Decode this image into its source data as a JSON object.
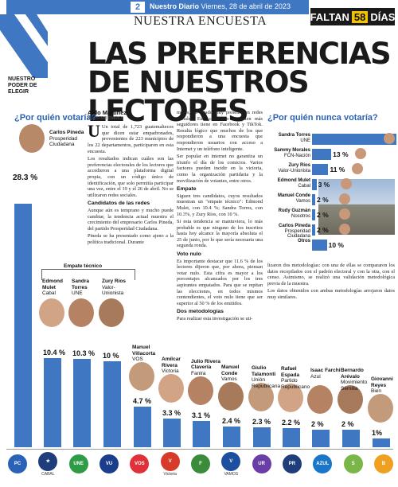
{
  "header": {
    "page_number": "2",
    "paper": "Nuestro Diario",
    "date": "Viernes, 28 de abril de 2023",
    "section": "NUESTRA ENCUESTA",
    "countdown_prefix": "FALTAN",
    "countdown_number": "58",
    "countdown_suffix": "DÍAS",
    "brand_lines": [
      "NUESTRO",
      "PODER DE",
      "ELEGIR"
    ]
  },
  "headline": [
    "LAS PREFERENCIAS",
    "DE NUESTROS LECTORES"
  ],
  "left_question": "¿Por quién votaría?",
  "right_question": "¿Por quién nunca votaría?",
  "empate_label": "Empate técnico",
  "vote_for": [
    {
      "name": "Carlos Pineda",
      "party": "Prosperidad Ciudadana",
      "pct": "28.3 %",
      "value": 28.3
    },
    {
      "name": "Edmond Mulet",
      "party": "Cabal",
      "pct": "10.4 %",
      "value": 10.4
    },
    {
      "name": "Sandra Torres",
      "party": "UNE",
      "pct": "10.3 %",
      "value": 10.3
    },
    {
      "name": "Zury Ríos",
      "party": "Valor-Unionista",
      "pct": "10 %",
      "value": 10
    },
    {
      "name": "Manuel Villacorta",
      "party": "VOS",
      "pct": "4.7 %",
      "value": 4.7
    },
    {
      "name": "Amílcar Rivera",
      "party": "Victoria",
      "pct": "3.3 %",
      "value": 3.3
    },
    {
      "name": "Julio Rivera Clavería",
      "party": "Fanlra",
      "pct": "3.1 %",
      "value": 3.1
    },
    {
      "name": "Manuel Conde",
      "party": "Vamos",
      "pct": "2.4 %",
      "value": 2.4
    },
    {
      "name": "Giulio Talamonti",
      "party": "Unión Republicana",
      "pct": "2.3 %",
      "value": 2.3
    },
    {
      "name": "Rafael Espada",
      "party": "Partido Republicano",
      "pct": "2.2 %",
      "value": 2.2
    },
    {
      "name": "Isaac Farchi",
      "party": "Azul",
      "pct": "2 %",
      "value": 2
    },
    {
      "name": "Bernardo Arévalo",
      "party": "Movimiento Semilla",
      "pct": "2 %",
      "value": 2
    },
    {
      "name": "Giovanni Reyes",
      "party": "Bien",
      "pct": "1%",
      "value": 1
    }
  ],
  "never_vote": [
    {
      "name": "Sandra Torres",
      "party": "UNE",
      "pct": "57 %",
      "value": 57
    },
    {
      "name": "Sammy Morales",
      "party": "FCN-Nación",
      "pct": "13 %",
      "value": 13
    },
    {
      "name": "Zury Ríos",
      "party": "Valor-Unionista",
      "pct": "11 %",
      "value": 11
    },
    {
      "name": "Edmond Mulet",
      "party": "Cabal",
      "pct": "3 %",
      "value": 3
    },
    {
      "name": "Manuel Conde",
      "party": "Vamos",
      "pct": "2 %",
      "value": 2
    },
    {
      "name": "Rudy Guzmán",
      "party": "Nosotros",
      "pct": "2 %",
      "value": 2
    },
    {
      "name": "Carlos Pineda",
      "party": "Prosperidad Ciudadana",
      "pct": "2 %",
      "value": 2
    },
    {
      "name": "Otros",
      "party": "",
      "pct": "10 %",
      "value": 10
    }
  ],
  "article": {
    "author": "Aldo Martínez",
    "author_role": "NUESTRO DIARIO",
    "col1": [
      "Un total de 1,723 guatemaltecos que dicen estar empadronados, provenientes de 223 municipios de los 22 departamentos, participaron en esta encuesta.",
      "Los resultados indican cuáles son las preferencias electorales de los lectores que accedieron a una plataforma digital propia, con un código único de identificación, que solo permitía participar una vez, entre el 19 y el 26 de abril. No se utilizaron redes sociales."
    ],
    "col1_sub": "Candidatos de las redes",
    "col1b": [
      "Aunque aún es temprano y mucho puede cambiar, la tendencia actual muestra el crecimiento del empresario Carlos Pineda, del partido Prosperidad Ciudadana.",
      "Pineda se ha presentado como ajeno a la política tradicional. Durante"
    ],
    "col2": [
      "meses, ha estado muy presente en redes sociales. Este candidato es quien más seguidores tiene en Facebook y TikTok. Resulta lógico que muchos de los que respondieron a una encuesta que respondieron usuarios con acceso a Internet y un teléfono inteligente.",
      "Ser popular en internet no garantiza un triunfo el día de los comicios. Varios factores pueden incidir en la victoria, como la organización partidaria y la movilización de votantes, entre otros."
    ],
    "col2_sub1": "Empate",
    "col2_b": [
      "Siguen tres candidatos, cuyos resultados muestran un \"empate técnico\": Edmond Mulet, con 10.4 %; Sandra Torres, con 10.3%, y Zury Ríos, con 10 %.",
      "Si esta tendencia se mantuviera, lo más probable es que ninguno de los inscritos hasta hoy alcance la mayoría absoluta el 25 de junio, por lo que sería necesaria una segunda ronda."
    ],
    "col2_sub2": "Voto nulo",
    "col2_c": [
      "Es importante destacar que 11.6 % de los lectores dijeron que, por ahora, piensan votar nulo. Esta cifra es mayor a los porcentajes alcanzados por los tres aspirantes empatados. Para que se repitan las elecciones, en todos mismos contendientes, el voto nulo tiene que ser superior al 50 % de los emitidos."
    ],
    "col2_sub3": "Dos metodologías",
    "col2_d": [
      "Para realizar esta investigación se uti-"
    ],
    "col3": [
      "lizaron dos metodologías: con una de ellas se compararon los datos recopilados con el padrón electoral y con la otra, con el censo. Asimismo, se realizó una validación metodológica previa de la muestra.",
      "Los datos obtenidos con ambas metodologías arrojaron datos muy similares."
    ]
  },
  "logos": [
    {
      "label": "",
      "text": "PC",
      "color": "#2a62b8"
    },
    {
      "label": "CABAL",
      "text": "★",
      "color": "#1f3d7a"
    },
    {
      "label": "",
      "text": "UNE",
      "color": "#2e9b47"
    },
    {
      "label": "",
      "text": "VU",
      "color": "#1a3e8c"
    },
    {
      "label": "",
      "text": "VOS",
      "color": "#e0303a"
    },
    {
      "label": "Victoria",
      "text": "V",
      "color": "#d83a2a"
    },
    {
      "label": "",
      "text": "F",
      "color": "#3a8c3a"
    },
    {
      "label": "VAMOS",
      "text": "V",
      "color": "#1c4fa0"
    },
    {
      "label": "",
      "text": "UR",
      "color": "#6a3ea6"
    },
    {
      "label": "",
      "text": "PR",
      "color": "#1f3d7a"
    },
    {
      "label": "",
      "text": "AZUL",
      "color": "#1976c9"
    },
    {
      "label": "",
      "text": "S",
      "color": "#7ab648"
    },
    {
      "label": "",
      "text": "B",
      "color": "#f0a020"
    }
  ]
}
